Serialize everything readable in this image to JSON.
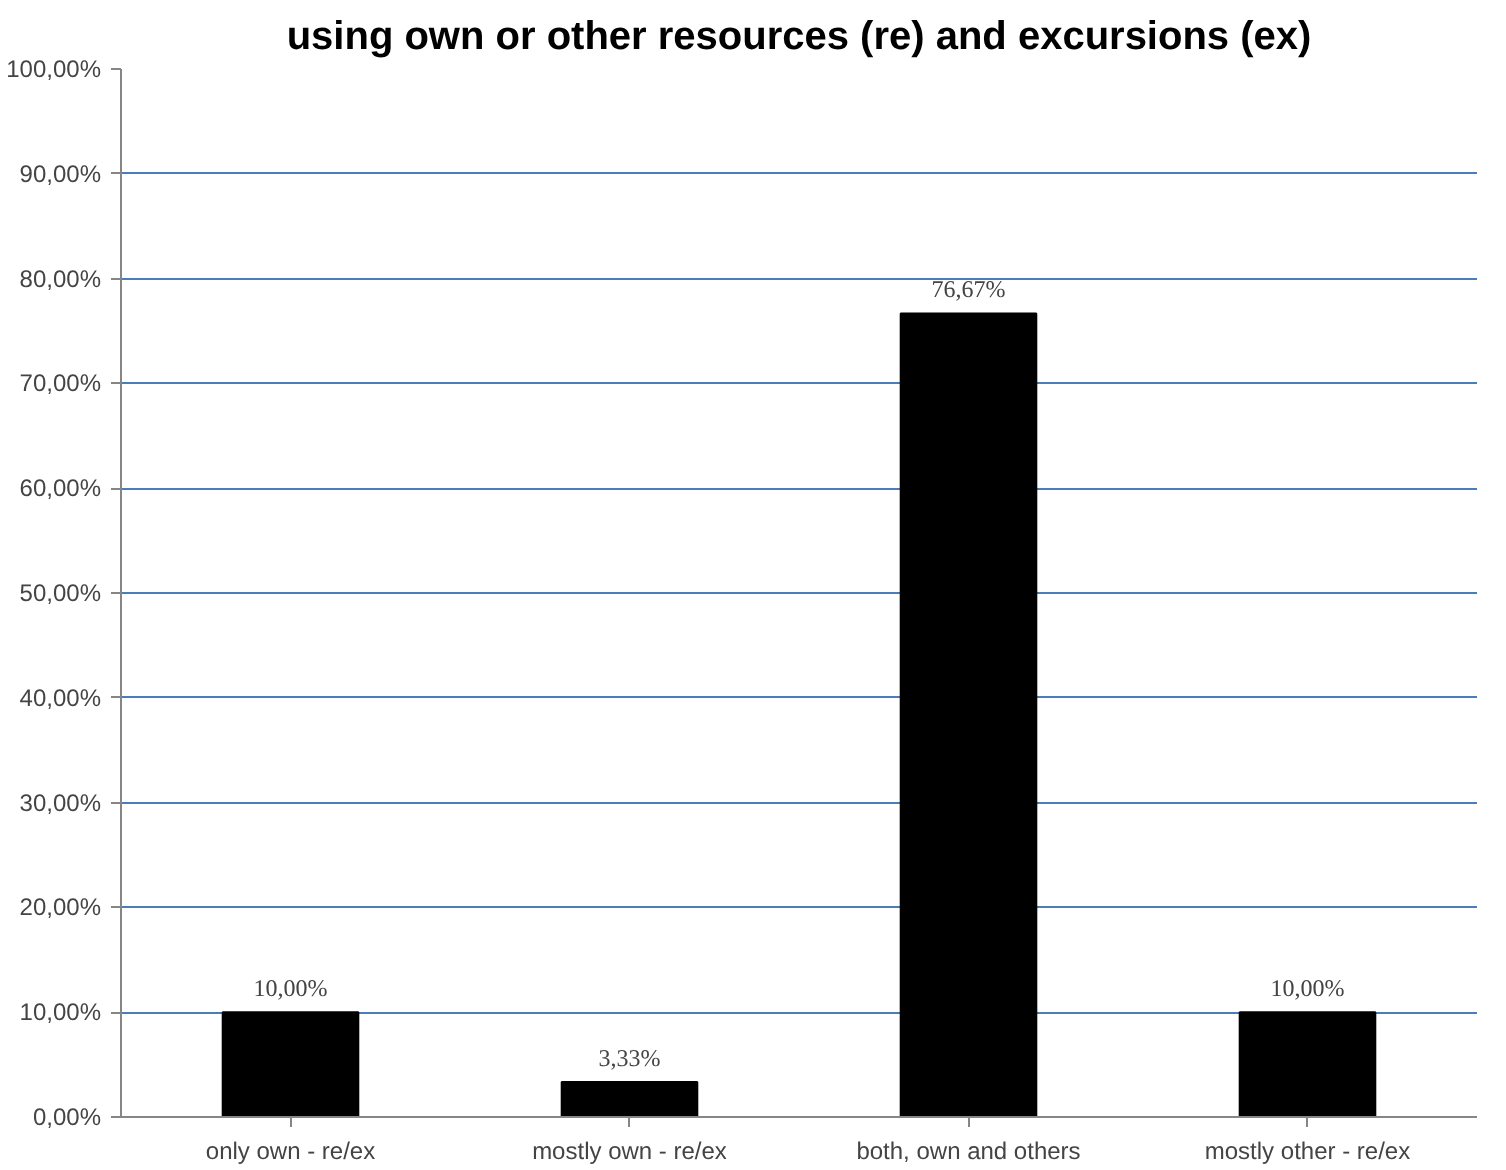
{
  "chart_data": {
    "type": "bar",
    "title": "using own or other resources (re) and excursions (ex)",
    "categories": [
      "only own - re/ex",
      "mostly own - re/ex",
      "both, own and others",
      "mostly other - re/ex"
    ],
    "values": [
      10.0,
      3.33,
      76.67,
      10.0
    ],
    "value_labels": [
      "10,00%",
      "3,33%",
      "76,67%",
      "10,00%"
    ],
    "color": "#000000",
    "ylim": [
      0,
      100
    ],
    "yticks": [
      {
        "value": 0,
        "label": "0,00%"
      },
      {
        "value": 10,
        "label": "10,00%"
      },
      {
        "value": 20,
        "label": "20,00%"
      },
      {
        "value": 30,
        "label": "30,00%"
      },
      {
        "value": 40,
        "label": "40,00%"
      },
      {
        "value": 50,
        "label": "50,00%"
      },
      {
        "value": 60,
        "label": "60,00%"
      },
      {
        "value": 70,
        "label": "70,00%"
      },
      {
        "value": 80,
        "label": "80,00%"
      },
      {
        "value": 90,
        "label": "90,00%"
      },
      {
        "value": 100,
        "label": "100,00%"
      }
    ],
    "grid": "y"
  }
}
